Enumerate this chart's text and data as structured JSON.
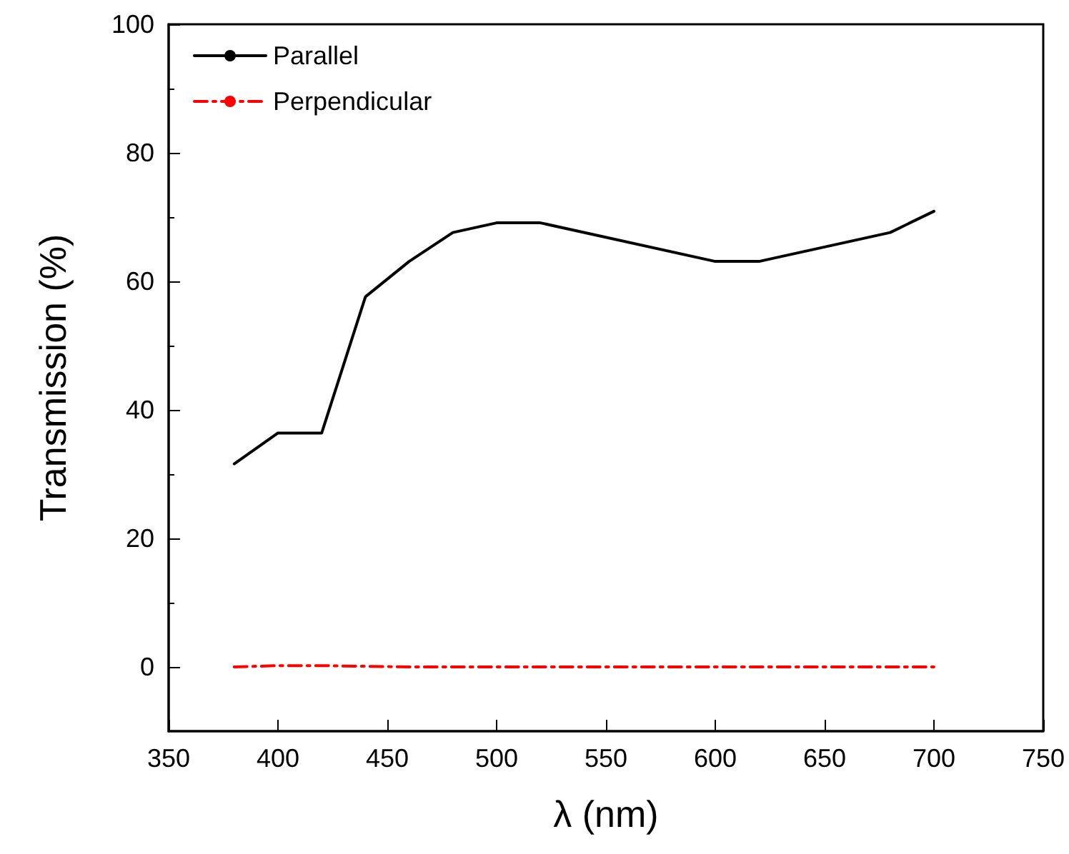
{
  "chart_data": {
    "type": "line",
    "xlabel": "λ (nm)",
    "ylabel": "Transmission (%)",
    "x": [
      380,
      400,
      420,
      440,
      460,
      480,
      500,
      520,
      600,
      620,
      680,
      700
    ],
    "series": [
      {
        "name": "Parallel",
        "color": "#000000",
        "line_style": "solid",
        "values": [
          31.6,
          36.4,
          36.4,
          57.6,
          63.1,
          67.6,
          69.1,
          69.1,
          63.1,
          63.1,
          67.6,
          70.9
        ]
      },
      {
        "name": "Perpendicular",
        "color": "#ff0000",
        "line_style": "dashdot",
        "values": [
          0,
          0.2,
          0.2,
          0.1,
          0,
          0,
          0,
          0,
          0,
          0,
          0,
          0
        ]
      }
    ],
    "xlim": [
      350,
      750
    ],
    "xticks": [
      350,
      400,
      450,
      500,
      550,
      600,
      650,
      700,
      750
    ],
    "ylim": [
      -10,
      100
    ],
    "yticks": [
      0,
      20,
      40,
      60,
      80,
      100
    ],
    "grid": false,
    "legend": "top left",
    "marker": "none"
  }
}
